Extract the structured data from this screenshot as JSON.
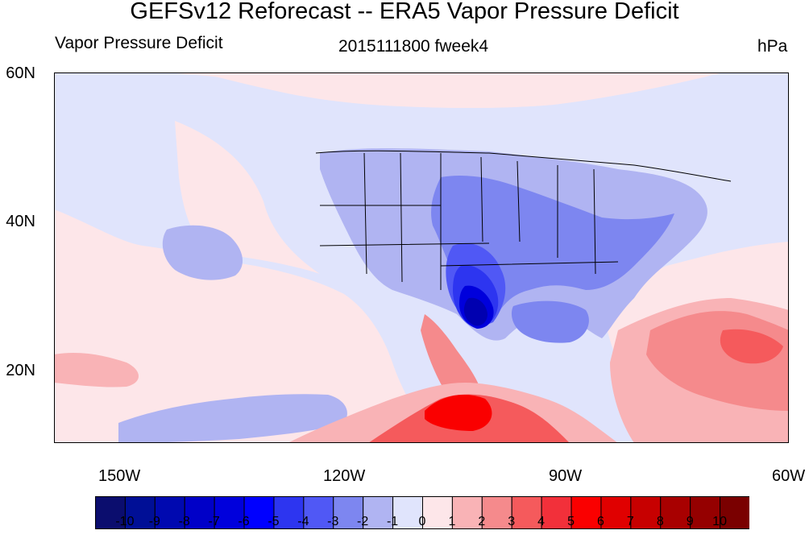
{
  "title": "GEFSv12 Reforecast -- ERA5 Vapor Pressure Deficit",
  "left_subtitle": "Vapor Pressure Deficit",
  "center_subtitle": "2015111800 fweek4",
  "right_subtitle": "hPa",
  "lat_labels": [
    "60N",
    "40N",
    "20N"
  ],
  "lon_labels": [
    "150W",
    "120W",
    "90W",
    "60W"
  ],
  "colorbar": {
    "colors": [
      "#0b0d6e",
      "#000f96",
      "#0009b0",
      "#0000c8",
      "#0000dc",
      "#0000ff",
      "#2d35f0",
      "#5058f5",
      "#7d86f0",
      "#b0b4f2",
      "#e0e4fc",
      "#fde6e9",
      "#f9b3b6",
      "#f58a8c",
      "#f55a5c",
      "#f2303a",
      "#fa0000",
      "#e00000",
      "#c70000",
      "#a80000",
      "#950000",
      "#7a0000"
    ],
    "labels": [
      "-10",
      "-9",
      "-8",
      "-7",
      "-6",
      "-5",
      "-4",
      "-3",
      "-2",
      "-1",
      "0",
      "1",
      "2",
      "3",
      "4",
      "5",
      "6",
      "7",
      "8",
      "9",
      "10"
    ]
  }
}
